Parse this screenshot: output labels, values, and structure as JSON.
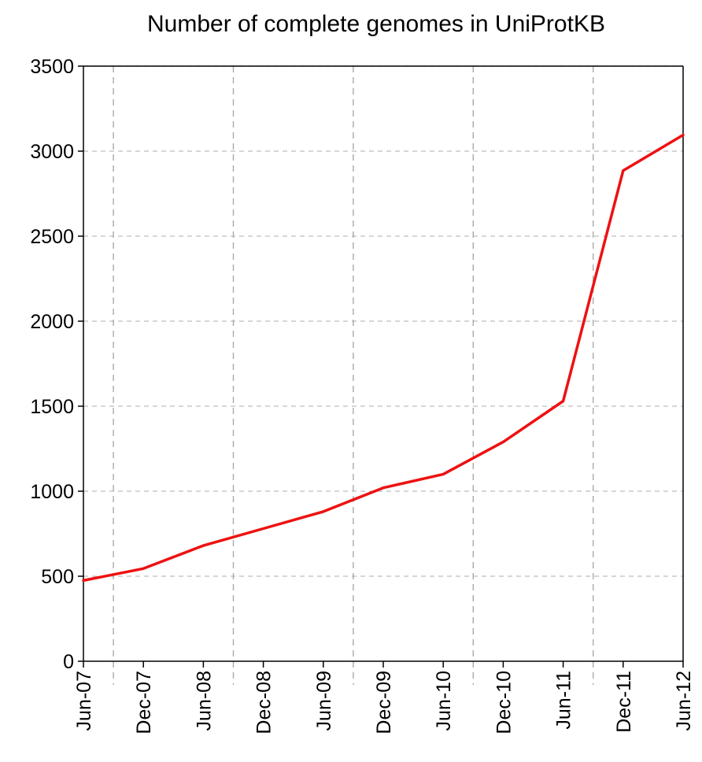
{
  "chart_data": {
    "type": "line",
    "title": "Number of complete genomes in UniProtKB",
    "xlabel": "",
    "ylabel": "",
    "ylim": [
      0,
      3500
    ],
    "yticks": [
      0,
      500,
      1000,
      1500,
      2000,
      2500,
      3000,
      3500
    ],
    "categories": [
      "Jun-07",
      "Dec-07",
      "Jun-08",
      "Dec-08",
      "Jun-09",
      "Dec-09",
      "Jun-10",
      "Dec-10",
      "Jun-11",
      "Dec-11",
      "Jun-12"
    ],
    "values": [
      475,
      545,
      680,
      780,
      880,
      1020,
      1100,
      1290,
      1530,
      2885,
      3095
    ],
    "line_color": "#ee1111",
    "grid": {
      "horizontal": "dashed",
      "vertical": "dashed"
    }
  }
}
